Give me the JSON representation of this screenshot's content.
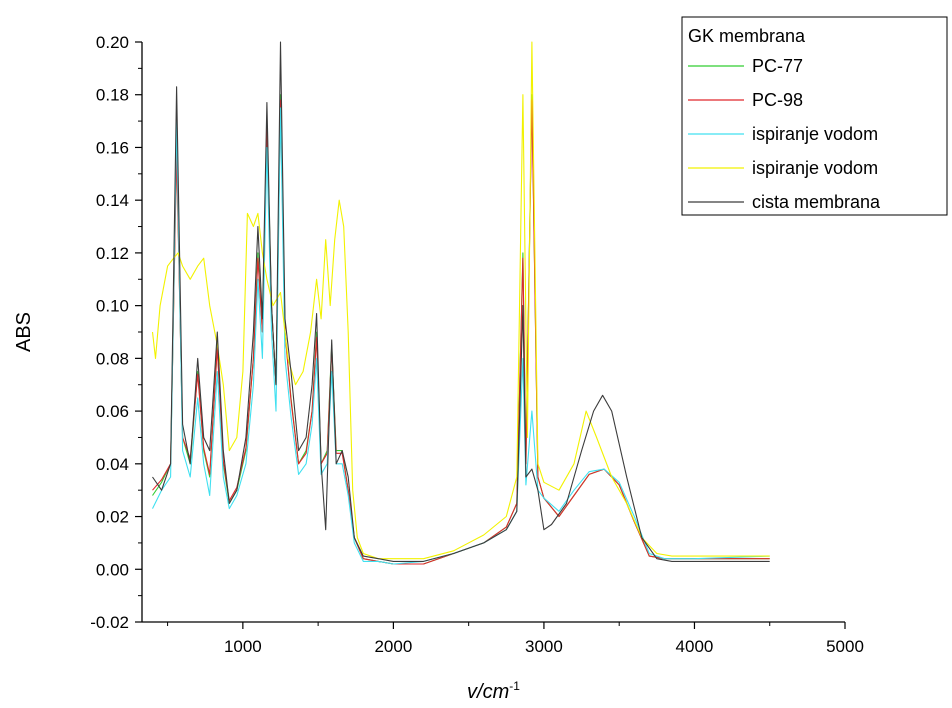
{
  "chart_data": {
    "type": "line",
    "title": "",
    "xlabel": "v/cm",
    "xlabel_superscript": "-1",
    "ylabel": "ABS",
    "xlim": [
      330,
      5000
    ],
    "ylim": [
      -0.02,
      0.2
    ],
    "x_ticks": [
      1000,
      2000,
      3000,
      4000,
      5000
    ],
    "x_tick_labels": [
      "1000",
      "2000",
      "3000",
      "4000",
      "5000"
    ],
    "y_ticks": [
      -0.02,
      0.0,
      0.02,
      0.04,
      0.06,
      0.08,
      0.1,
      0.12,
      0.14,
      0.16,
      0.18,
      0.2
    ],
    "y_tick_labels": [
      "-0.02",
      "0.00",
      "0.02",
      "0.04",
      "0.06",
      "0.08",
      "0.10",
      "0.12",
      "0.14",
      "0.16",
      "0.18",
      "0.20"
    ],
    "grid": false,
    "legend": {
      "title": "GK membrana",
      "placement": "top-right"
    },
    "series": [
      {
        "name": "PC-77",
        "color": "#32CD32",
        "points": [
          [
            400,
            0.028
          ],
          [
            460,
            0.033
          ],
          [
            520,
            0.04
          ],
          [
            560,
            0.16
          ],
          [
            600,
            0.05
          ],
          [
            650,
            0.04
          ],
          [
            700,
            0.075
          ],
          [
            740,
            0.045
          ],
          [
            780,
            0.035
          ],
          [
            830,
            0.085
          ],
          [
            870,
            0.04
          ],
          [
            910,
            0.025
          ],
          [
            960,
            0.03
          ],
          [
            1020,
            0.045
          ],
          [
            1070,
            0.08
          ],
          [
            1100,
            0.12
          ],
          [
            1130,
            0.09
          ],
          [
            1160,
            0.17
          ],
          [
            1190,
            0.1
          ],
          [
            1220,
            0.07
          ],
          [
            1250,
            0.18
          ],
          [
            1280,
            0.09
          ],
          [
            1320,
            0.065
          ],
          [
            1370,
            0.04
          ],
          [
            1420,
            0.045
          ],
          [
            1460,
            0.06
          ],
          [
            1490,
            0.09
          ],
          [
            1520,
            0.04
          ],
          [
            1560,
            0.045
          ],
          [
            1590,
            0.085
          ],
          [
            1620,
            0.045
          ],
          [
            1660,
            0.045
          ],
          [
            1700,
            0.03
          ],
          [
            1740,
            0.012
          ],
          [
            1800,
            0.004
          ],
          [
            1900,
            0.003
          ],
          [
            2000,
            0.002
          ],
          [
            2200,
            0.002
          ],
          [
            2400,
            0.006
          ],
          [
            2600,
            0.01
          ],
          [
            2750,
            0.016
          ],
          [
            2820,
            0.025
          ],
          [
            2860,
            0.12
          ],
          [
            2880,
            0.04
          ],
          [
            2920,
            0.18
          ],
          [
            2960,
            0.035
          ],
          [
            3000,
            0.027
          ],
          [
            3100,
            0.02
          ],
          [
            3200,
            0.028
          ],
          [
            3300,
            0.036
          ],
          [
            3400,
            0.038
          ],
          [
            3500,
            0.032
          ],
          [
            3600,
            0.018
          ],
          [
            3700,
            0.005
          ],
          [
            3800,
            0.004
          ],
          [
            4000,
            0.004
          ],
          [
            4500,
            0.004
          ]
        ]
      },
      {
        "name": "PC-98",
        "color": "#E0282C",
        "points": [
          [
            400,
            0.03
          ],
          [
            460,
            0.034
          ],
          [
            520,
            0.04
          ],
          [
            560,
            0.158
          ],
          [
            600,
            0.05
          ],
          [
            650,
            0.042
          ],
          [
            700,
            0.074
          ],
          [
            740,
            0.046
          ],
          [
            780,
            0.036
          ],
          [
            830,
            0.084
          ],
          [
            870,
            0.041
          ],
          [
            910,
            0.026
          ],
          [
            960,
            0.031
          ],
          [
            1020,
            0.046
          ],
          [
            1070,
            0.08
          ],
          [
            1100,
            0.118
          ],
          [
            1130,
            0.09
          ],
          [
            1160,
            0.168
          ],
          [
            1190,
            0.1
          ],
          [
            1220,
            0.07
          ],
          [
            1250,
            0.178
          ],
          [
            1280,
            0.09
          ],
          [
            1320,
            0.064
          ],
          [
            1370,
            0.04
          ],
          [
            1420,
            0.044
          ],
          [
            1460,
            0.06
          ],
          [
            1490,
            0.088
          ],
          [
            1520,
            0.04
          ],
          [
            1560,
            0.044
          ],
          [
            1590,
            0.084
          ],
          [
            1620,
            0.044
          ],
          [
            1660,
            0.044
          ],
          [
            1700,
            0.03
          ],
          [
            1740,
            0.012
          ],
          [
            1800,
            0.004
          ],
          [
            1900,
            0.003
          ],
          [
            2000,
            0.002
          ],
          [
            2200,
            0.002
          ],
          [
            2400,
            0.006
          ],
          [
            2600,
            0.01
          ],
          [
            2750,
            0.016
          ],
          [
            2820,
            0.025
          ],
          [
            2860,
            0.118
          ],
          [
            2880,
            0.04
          ],
          [
            2920,
            0.178
          ],
          [
            2960,
            0.035
          ],
          [
            3000,
            0.027
          ],
          [
            3100,
            0.02
          ],
          [
            3200,
            0.028
          ],
          [
            3300,
            0.036
          ],
          [
            3400,
            0.038
          ],
          [
            3500,
            0.032
          ],
          [
            3600,
            0.018
          ],
          [
            3700,
            0.005
          ],
          [
            3800,
            0.004
          ],
          [
            4000,
            0.004
          ],
          [
            4500,
            0.004
          ]
        ]
      },
      {
        "name": "ispiranje vodom",
        "color": "#40E0F0",
        "points": [
          [
            400,
            0.023
          ],
          [
            460,
            0.03
          ],
          [
            520,
            0.035
          ],
          [
            560,
            0.17
          ],
          [
            600,
            0.045
          ],
          [
            650,
            0.035
          ],
          [
            700,
            0.065
          ],
          [
            740,
            0.04
          ],
          [
            780,
            0.028
          ],
          [
            830,
            0.075
          ],
          [
            870,
            0.035
          ],
          [
            910,
            0.023
          ],
          [
            960,
            0.028
          ],
          [
            1020,
            0.04
          ],
          [
            1070,
            0.07
          ],
          [
            1100,
            0.11
          ],
          [
            1130,
            0.08
          ],
          [
            1160,
            0.16
          ],
          [
            1190,
            0.09
          ],
          [
            1220,
            0.06
          ],
          [
            1250,
            0.175
          ],
          [
            1280,
            0.08
          ],
          [
            1320,
            0.058
          ],
          [
            1370,
            0.036
          ],
          [
            1420,
            0.04
          ],
          [
            1460,
            0.055
          ],
          [
            1490,
            0.08
          ],
          [
            1520,
            0.036
          ],
          [
            1560,
            0.04
          ],
          [
            1590,
            0.075
          ],
          [
            1620,
            0.04
          ],
          [
            1660,
            0.04
          ],
          [
            1700,
            0.028
          ],
          [
            1740,
            0.01
          ],
          [
            1800,
            0.003
          ],
          [
            1900,
            0.003
          ],
          [
            2000,
            0.002
          ],
          [
            2200,
            0.003
          ],
          [
            2400,
            0.006
          ],
          [
            2600,
            0.01
          ],
          [
            2750,
            0.015
          ],
          [
            2820,
            0.022
          ],
          [
            2860,
            0.08
          ],
          [
            2880,
            0.032
          ],
          [
            2920,
            0.06
          ],
          [
            2960,
            0.03
          ],
          [
            3000,
            0.027
          ],
          [
            3100,
            0.022
          ],
          [
            3200,
            0.03
          ],
          [
            3300,
            0.037
          ],
          [
            3400,
            0.038
          ],
          [
            3500,
            0.033
          ],
          [
            3600,
            0.02
          ],
          [
            3700,
            0.006
          ],
          [
            3800,
            0.004
          ],
          [
            4000,
            0.004
          ],
          [
            4500,
            0.005
          ]
        ]
      },
      {
        "name": "ispiranje vodom",
        "color": "#F2F200",
        "points": [
          [
            400,
            0.09
          ],
          [
            420,
            0.08
          ],
          [
            450,
            0.1
          ],
          [
            500,
            0.115
          ],
          [
            540,
            0.118
          ],
          [
            570,
            0.12
          ],
          [
            600,
            0.115
          ],
          [
            650,
            0.11
          ],
          [
            700,
            0.115
          ],
          [
            740,
            0.118
          ],
          [
            780,
            0.1
          ],
          [
            830,
            0.085
          ],
          [
            870,
            0.07
          ],
          [
            910,
            0.045
          ],
          [
            960,
            0.05
          ],
          [
            1000,
            0.075
          ],
          [
            1030,
            0.135
          ],
          [
            1070,
            0.13
          ],
          [
            1100,
            0.135
          ],
          [
            1130,
            0.12
          ],
          [
            1160,
            0.11
          ],
          [
            1200,
            0.1
          ],
          [
            1250,
            0.105
          ],
          [
            1300,
            0.08
          ],
          [
            1350,
            0.07
          ],
          [
            1400,
            0.075
          ],
          [
            1450,
            0.09
          ],
          [
            1490,
            0.11
          ],
          [
            1520,
            0.095
          ],
          [
            1550,
            0.125
          ],
          [
            1580,
            0.1
          ],
          [
            1610,
            0.125
          ],
          [
            1640,
            0.14
          ],
          [
            1670,
            0.13
          ],
          [
            1700,
            0.09
          ],
          [
            1730,
            0.03
          ],
          [
            1760,
            0.012
          ],
          [
            1800,
            0.006
          ],
          [
            1900,
            0.004
          ],
          [
            2000,
            0.004
          ],
          [
            2200,
            0.004
          ],
          [
            2400,
            0.007
          ],
          [
            2600,
            0.013
          ],
          [
            2750,
            0.02
          ],
          [
            2820,
            0.035
          ],
          [
            2860,
            0.18
          ],
          [
            2890,
            0.05
          ],
          [
            2920,
            0.2
          ],
          [
            2960,
            0.04
          ],
          [
            3000,
            0.033
          ],
          [
            3100,
            0.03
          ],
          [
            3200,
            0.04
          ],
          [
            3280,
            0.06
          ],
          [
            3350,
            0.05
          ],
          [
            3450,
            0.035
          ],
          [
            3550,
            0.025
          ],
          [
            3650,
            0.012
          ],
          [
            3750,
            0.006
          ],
          [
            3850,
            0.005
          ],
          [
            4000,
            0.005
          ],
          [
            4500,
            0.005
          ]
        ]
      },
      {
        "name": "cista membrana",
        "color": "#3C3C3C",
        "points": [
          [
            400,
            0.035
          ],
          [
            460,
            0.03
          ],
          [
            520,
            0.04
          ],
          [
            560,
            0.183
          ],
          [
            600,
            0.055
          ],
          [
            650,
            0.04
          ],
          [
            700,
            0.08
          ],
          [
            740,
            0.05
          ],
          [
            780,
            0.045
          ],
          [
            830,
            0.09
          ],
          [
            870,
            0.045
          ],
          [
            910,
            0.025
          ],
          [
            960,
            0.03
          ],
          [
            1020,
            0.05
          ],
          [
            1070,
            0.09
          ],
          [
            1100,
            0.13
          ],
          [
            1130,
            0.095
          ],
          [
            1160,
            0.177
          ],
          [
            1190,
            0.1
          ],
          [
            1220,
            0.07
          ],
          [
            1250,
            0.2
          ],
          [
            1280,
            0.095
          ],
          [
            1320,
            0.075
          ],
          [
            1370,
            0.045
          ],
          [
            1420,
            0.05
          ],
          [
            1460,
            0.07
          ],
          [
            1490,
            0.097
          ],
          [
            1520,
            0.04
          ],
          [
            1550,
            0.015
          ],
          [
            1590,
            0.087
          ],
          [
            1620,
            0.04
          ],
          [
            1660,
            0.045
          ],
          [
            1700,
            0.035
          ],
          [
            1740,
            0.012
          ],
          [
            1800,
            0.005
          ],
          [
            1900,
            0.004
          ],
          [
            2000,
            0.003
          ],
          [
            2200,
            0.003
          ],
          [
            2400,
            0.006
          ],
          [
            2600,
            0.01
          ],
          [
            2750,
            0.015
          ],
          [
            2820,
            0.022
          ],
          [
            2860,
            0.1
          ],
          [
            2880,
            0.035
          ],
          [
            2920,
            0.038
          ],
          [
            2960,
            0.03
          ],
          [
            3000,
            0.015
          ],
          [
            3050,
            0.017
          ],
          [
            3150,
            0.025
          ],
          [
            3250,
            0.045
          ],
          [
            3330,
            0.06
          ],
          [
            3390,
            0.066
          ],
          [
            3450,
            0.06
          ],
          [
            3550,
            0.035
          ],
          [
            3650,
            0.012
          ],
          [
            3750,
            0.004
          ],
          [
            3850,
            0.003
          ],
          [
            4000,
            0.003
          ],
          [
            4500,
            0.003
          ]
        ]
      }
    ]
  }
}
